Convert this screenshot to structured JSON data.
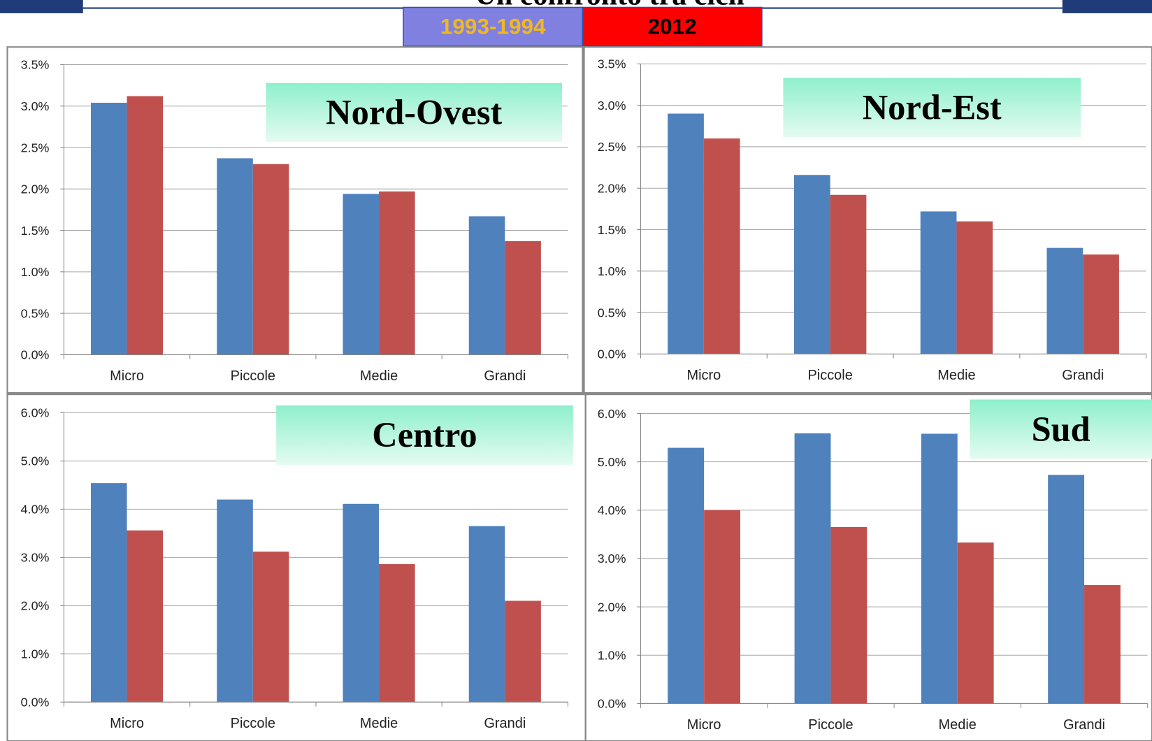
{
  "title": "Un confronto tra cicli",
  "legend": [
    {
      "label": "1993-1994",
      "color": "#8080e0",
      "text_color": "#f0b820"
    },
    {
      "label": "2012",
      "color": "#ff0000",
      "text_color": "#000000"
    }
  ],
  "chart_data": [
    {
      "type": "bar",
      "title": "Nord-Ovest",
      "categories": [
        "Micro",
        "Piccole",
        "Medie",
        "Grandi"
      ],
      "series": [
        {
          "color": "#4f81bd",
          "values": [
            3.04,
            2.37,
            1.94,
            1.67
          ]
        },
        {
          "color": "#c0504d",
          "values": [
            3.12,
            2.3,
            1.97,
            1.37
          ]
        }
      ],
      "ylim": [
        0,
        3.5
      ],
      "grid": true,
      "yticks": [
        {
          "value": 0,
          "label": "0.0%"
        },
        {
          "value": 0.5,
          "label": "0.5%"
        },
        {
          "value": 1,
          "label": "1.0%"
        },
        {
          "value": 1.5,
          "label": "1.5%"
        },
        {
          "value": 2,
          "label": "2.0%"
        },
        {
          "value": 2.5,
          "label": "2.5%"
        },
        {
          "value": 3,
          "label": "3.0%"
        },
        {
          "value": 3.5,
          "label": "3.5%"
        }
      ]
    },
    {
      "type": "bar",
      "title": "Nord-Est",
      "categories": [
        "Micro",
        "Piccole",
        "Medie",
        "Grandi"
      ],
      "series": [
        {
          "color": "#4f81bd",
          "values": [
            2.9,
            2.16,
            1.72,
            1.28
          ]
        },
        {
          "color": "#c0504d",
          "values": [
            2.6,
            1.92,
            1.6,
            1.2
          ]
        }
      ],
      "ylim": [
        0,
        3.5
      ],
      "grid": true,
      "yticks": [
        {
          "value": 0,
          "label": "0.0%"
        },
        {
          "value": 0.5,
          "label": "0.5%"
        },
        {
          "value": 1,
          "label": "1.0%"
        },
        {
          "value": 1.5,
          "label": "1.5%"
        },
        {
          "value": 2,
          "label": "2.0%"
        },
        {
          "value": 2.5,
          "label": "2.5%"
        },
        {
          "value": 3,
          "label": "3.0%"
        },
        {
          "value": 3.5,
          "label": "3.5%"
        }
      ]
    },
    {
      "type": "bar",
      "title": "Centro",
      "categories": [
        "Micro",
        "Piccole",
        "Medie",
        "Grandi"
      ],
      "series": [
        {
          "color": "#4f81bd",
          "values": [
            4.54,
            4.2,
            4.11,
            3.65
          ]
        },
        {
          "color": "#c0504d",
          "values": [
            3.56,
            3.12,
            2.86,
            2.1
          ]
        }
      ],
      "ylim": [
        0,
        6
      ],
      "grid": true,
      "yticks": [
        {
          "value": 0,
          "label": "0.0%"
        },
        {
          "value": 1,
          "label": "1.0%"
        },
        {
          "value": 2,
          "label": "2.0%"
        },
        {
          "value": 3,
          "label": "3.0%"
        },
        {
          "value": 4,
          "label": "4.0%"
        },
        {
          "value": 5,
          "label": "5.0%"
        },
        {
          "value": 6,
          "label": "6.0%"
        }
      ]
    },
    {
      "type": "bar",
      "title": "Sud",
      "categories": [
        "Micro",
        "Piccole",
        "Medie",
        "Grandi"
      ],
      "series": [
        {
          "color": "#4f81bd",
          "values": [
            5.29,
            5.59,
            5.58,
            4.73
          ]
        },
        {
          "color": "#c0504d",
          "values": [
            4.0,
            3.65,
            3.33,
            2.45
          ]
        }
      ],
      "ylim": [
        0,
        6
      ],
      "grid": true,
      "yticks": [
        {
          "value": 0,
          "label": "0.0%"
        },
        {
          "value": 1,
          "label": "1.0%"
        },
        {
          "value": 2,
          "label": "2.0%"
        },
        {
          "value": 3,
          "label": "3.0%"
        },
        {
          "value": 4,
          "label": "4.0%"
        },
        {
          "value": 5,
          "label": "5.0%"
        },
        {
          "value": 6,
          "label": "6.0%"
        }
      ]
    }
  ]
}
